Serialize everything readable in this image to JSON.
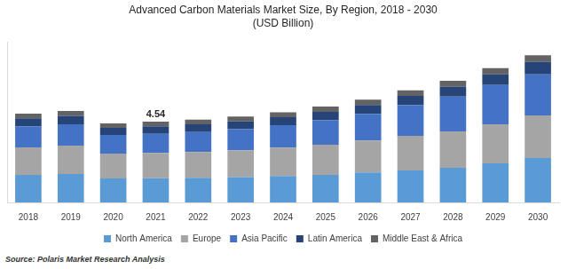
{
  "chart_data": {
    "type": "bar",
    "title": "Advanced Carbon Materials Market Size, By Region, 2018 - 2030",
    "subtitle": "(USD Billion)",
    "source": "Source: Polaris Market Research Analysis",
    "categories": [
      "2018",
      "2019",
      "2020",
      "2021",
      "2022",
      "2023",
      "2024",
      "2025",
      "2026",
      "2027",
      "2028",
      "2029",
      "2030"
    ],
    "series": [
      {
        "name": "North America",
        "color": "#5b9bd5",
        "values": [
          1.55,
          1.6,
          1.35,
          1.36,
          1.38,
          1.42,
          1.48,
          1.55,
          1.68,
          1.8,
          1.95,
          2.2,
          2.5
        ]
      },
      {
        "name": "Europe",
        "color": "#a5a5a5",
        "values": [
          1.55,
          1.6,
          1.4,
          1.42,
          1.46,
          1.52,
          1.6,
          1.7,
          1.8,
          1.95,
          2.05,
          2.2,
          2.4
        ]
      },
      {
        "name": "Asia Pacific",
        "color": "#4472c4",
        "values": [
          1.18,
          1.2,
          1.05,
          1.08,
          1.12,
          1.18,
          1.26,
          1.38,
          1.5,
          1.72,
          1.95,
          2.2,
          2.3
        ]
      },
      {
        "name": "Latin America",
        "color": "#264478",
        "values": [
          0.45,
          0.47,
          0.4,
          0.42,
          0.43,
          0.44,
          0.45,
          0.47,
          0.5,
          0.52,
          0.56,
          0.6,
          0.7
        ]
      },
      {
        "name": "Middle East & Africa",
        "color": "#636363",
        "values": [
          0.27,
          0.28,
          0.25,
          0.26,
          0.27,
          0.27,
          0.28,
          0.29,
          0.3,
          0.32,
          0.33,
          0.35,
          0.38
        ]
      }
    ],
    "stacked": true,
    "ylim": [
      0,
      9
    ],
    "tick_labels": "x",
    "grid": false,
    "legend": "bottom",
    "annotations": [
      {
        "x": "2021",
        "y": 4.54,
        "text": "4.54"
      }
    ]
  }
}
